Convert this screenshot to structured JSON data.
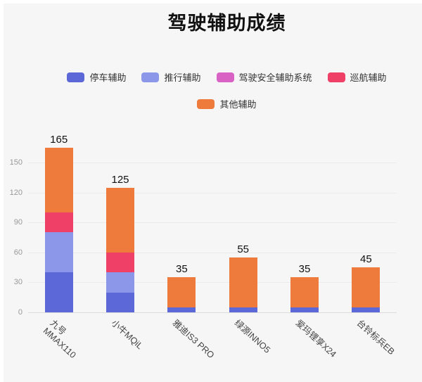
{
  "title": "驾驶辅助成绩",
  "chart_data": {
    "type": "bar",
    "stacked": true,
    "title": "驾驶辅助成绩",
    "categories": [
      "九号\nMMAX110",
      "小牛MQiL",
      "雅迪IS3 PRO",
      "绿源INNO5",
      "爱玛锂享X24",
      "台铃标兵EB"
    ],
    "series": [
      {
        "name": "停车辅助",
        "color": "#5c67d8",
        "values": [
          40,
          20,
          5,
          5,
          5,
          5
        ]
      },
      {
        "name": "推行辅助",
        "color": "#8c97e9",
        "values": [
          40,
          20,
          0,
          0,
          0,
          0
        ]
      },
      {
        "name": "驾驶安全辅助系统",
        "color": "#d863c5",
        "values": [
          0,
          0,
          0,
          0,
          0,
          0
        ]
      },
      {
        "name": "巡航辅助",
        "color": "#ef4168",
        "values": [
          20,
          20,
          0,
          0,
          0,
          0
        ]
      },
      {
        "name": "其他辅助",
        "color": "#ee7b3c",
        "values": [
          65,
          65,
          30,
          50,
          30,
          40
        ]
      }
    ],
    "totals": [
      165,
      125,
      35,
      55,
      35,
      45
    ],
    "yticks": [
      0,
      30,
      60,
      90,
      120,
      150
    ],
    "ylim": [
      0,
      165
    ],
    "legend_rows": [
      [
        0,
        1,
        2,
        3
      ],
      [
        4
      ]
    ],
    "legend_position": "top-center",
    "grid": true,
    "background": "#f6f6f6"
  }
}
